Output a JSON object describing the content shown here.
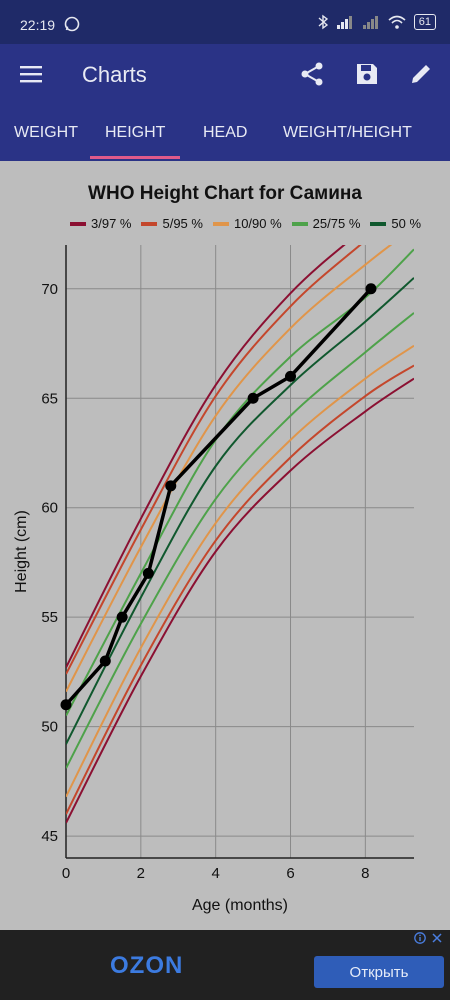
{
  "status_bar": {
    "time": "22:19",
    "battery": "61"
  },
  "app_bar": {
    "title": "Charts"
  },
  "tabs": [
    {
      "label": "WEIGHT",
      "active": false
    },
    {
      "label": "HEIGHT",
      "active": true
    },
    {
      "label": "HEAD",
      "active": false
    },
    {
      "label": "WEIGHT/HEIGHT",
      "active": false
    }
  ],
  "chart_data": {
    "type": "line",
    "title": "WHO Height Chart for Самина",
    "xlabel": "Age (months)",
    "ylabel": "Height (cm)",
    "xlim": [
      0,
      9.3
    ],
    "ylim": [
      44,
      72
    ],
    "xticks": [
      "0",
      "2",
      "4",
      "6",
      "8"
    ],
    "yticks": [
      "45",
      "50",
      "55",
      "60",
      "65",
      "70"
    ],
    "grid": true,
    "legend_position": "top",
    "legend": [
      {
        "label": "3/97 %",
        "color": "#8b1032"
      },
      {
        "label": "5/95 %",
        "color": "#c4472c"
      },
      {
        "label": "10/90 %",
        "color": "#e0954a"
      },
      {
        "label": "25/75 %",
        "color": "#4ea24a"
      },
      {
        "label": "50 %",
        "color": "#10582e"
      }
    ],
    "percentile_bands": [
      {
        "label": "3/97 %",
        "color": "#8b1032",
        "lower": [
          [
            0,
            45.6
          ],
          [
            2,
            52.3
          ],
          [
            4,
            58.0
          ],
          [
            6,
            61.7
          ],
          [
            8,
            64.4
          ],
          [
            9.3,
            65.9
          ]
        ],
        "upper": [
          [
            0,
            52.7
          ],
          [
            2,
            59.5
          ],
          [
            4,
            65.6
          ],
          [
            6,
            69.8
          ],
          [
            8,
            72.8
          ],
          [
            9.3,
            74.6
          ]
        ]
      },
      {
        "label": "5/95 %",
        "color": "#c4472c",
        "lower": [
          [
            0,
            46.0
          ],
          [
            2,
            52.8
          ],
          [
            4,
            58.5
          ],
          [
            6,
            62.3
          ],
          [
            8,
            65.1
          ],
          [
            9.3,
            66.5
          ]
        ],
        "upper": [
          [
            0,
            52.4
          ],
          [
            2,
            59.0
          ],
          [
            4,
            65.1
          ],
          [
            6,
            69.2
          ],
          [
            8,
            72.2
          ],
          [
            9.3,
            74.0
          ]
        ]
      },
      {
        "label": "10/90 %",
        "color": "#e0954a",
        "lower": [
          [
            0,
            46.8
          ],
          [
            2,
            53.6
          ],
          [
            4,
            59.3
          ],
          [
            6,
            63.1
          ],
          [
            8,
            65.9
          ],
          [
            9.3,
            67.4
          ]
        ],
        "upper": [
          [
            0,
            51.6
          ],
          [
            2,
            58.2
          ],
          [
            4,
            64.2
          ],
          [
            6,
            68.2
          ],
          [
            8,
            71.1
          ],
          [
            9.3,
            72.8
          ]
        ]
      },
      {
        "label": "25/75 %",
        "color": "#4ea24a",
        "lower": [
          [
            0,
            48.1
          ],
          [
            2,
            54.7
          ],
          [
            4,
            60.4
          ],
          [
            6,
            64.2
          ],
          [
            8,
            67.1
          ],
          [
            9.3,
            68.9
          ]
        ],
        "upper": [
          [
            0,
            50.5
          ],
          [
            2,
            57.0
          ],
          [
            4,
            63.1
          ],
          [
            6,
            66.9
          ],
          [
            8,
            69.6
          ],
          [
            9.3,
            71.8
          ]
        ]
      },
      {
        "label": "50 %",
        "color": "#10582e",
        "lower": [
          [
            0,
            49.2
          ],
          [
            2,
            55.9
          ],
          [
            4,
            61.9
          ],
          [
            6,
            65.6
          ],
          [
            8,
            68.5
          ],
          [
            9.3,
            70.5
          ]
        ],
        "upper": []
      }
    ],
    "series": [
      {
        "x": [
          0,
          1.05,
          1.5,
          2.2,
          2.8,
          5.0,
          6.0,
          8.15
        ],
        "y": [
          51,
          53,
          55,
          57,
          61,
          65,
          66,
          70
        ],
        "color": "#000000"
      }
    ]
  },
  "ad": {
    "brand": "OZON",
    "button": "Открыть",
    "info_icon": "info-icon",
    "close_icon": "close-icon"
  }
}
